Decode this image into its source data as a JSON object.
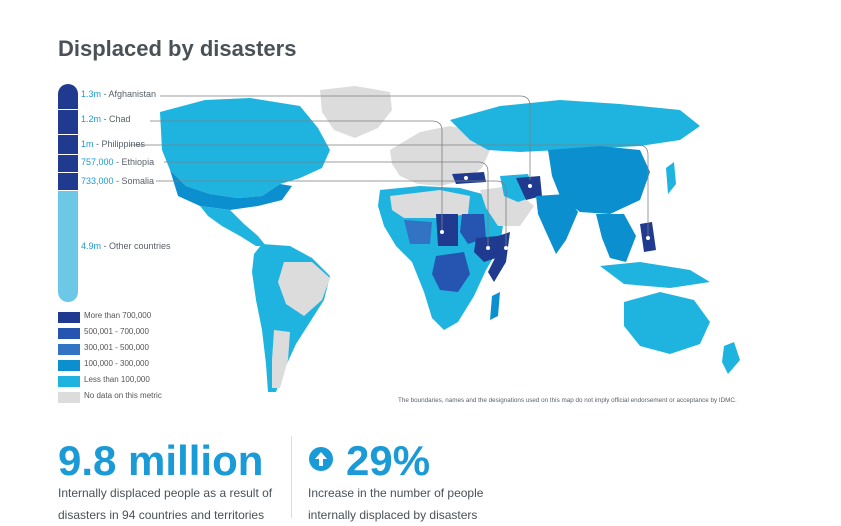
{
  "title": "Displaced by disasters",
  "callouts": [
    {
      "value": "1.3m",
      "country": "Afghanistan"
    },
    {
      "value": "1.2m",
      "country": "Chad"
    },
    {
      "value": "1m",
      "country": "Philippines"
    },
    {
      "value": "757,000",
      "country": "Ethiopia"
    },
    {
      "value": "733,000",
      "country": "Somalia"
    },
    {
      "value": "4.9m",
      "country": "Other countries"
    }
  ],
  "legend": [
    {
      "label": "More than 700,000",
      "color": "#1f3a8f"
    },
    {
      "label": "500,001 - 700,000",
      "color": "#2555b0"
    },
    {
      "label": "300,001 - 500,000",
      "color": "#3373c4"
    },
    {
      "label": "100,000 - 300,000",
      "color": "#0c8fce"
    },
    {
      "label": "Less than 100,000",
      "color": "#1fb4e0"
    },
    {
      "label": "No data on this metric",
      "color": "#dcdcdc"
    }
  ],
  "disclaimer": "The boundaries, names and the designations used on this map do not imply official endorsement or acceptance by IDMC.",
  "stats": {
    "left_value": "9.8 million",
    "left_desc_line1": "Internally displaced people as a result of",
    "left_desc_line2": "disasters in 94 countries and territories",
    "right_value": "29%",
    "right_desc_line1": "Increase in the number of people",
    "right_desc_line2": "internally displaced by disasters"
  },
  "colors": {
    "accent": "#1a9ad6",
    "bar_dark": "#1f3a8f",
    "bar_light": "#6cc8e6"
  },
  "icons": {
    "stat_right": "arrow-up-circle-icon"
  }
}
